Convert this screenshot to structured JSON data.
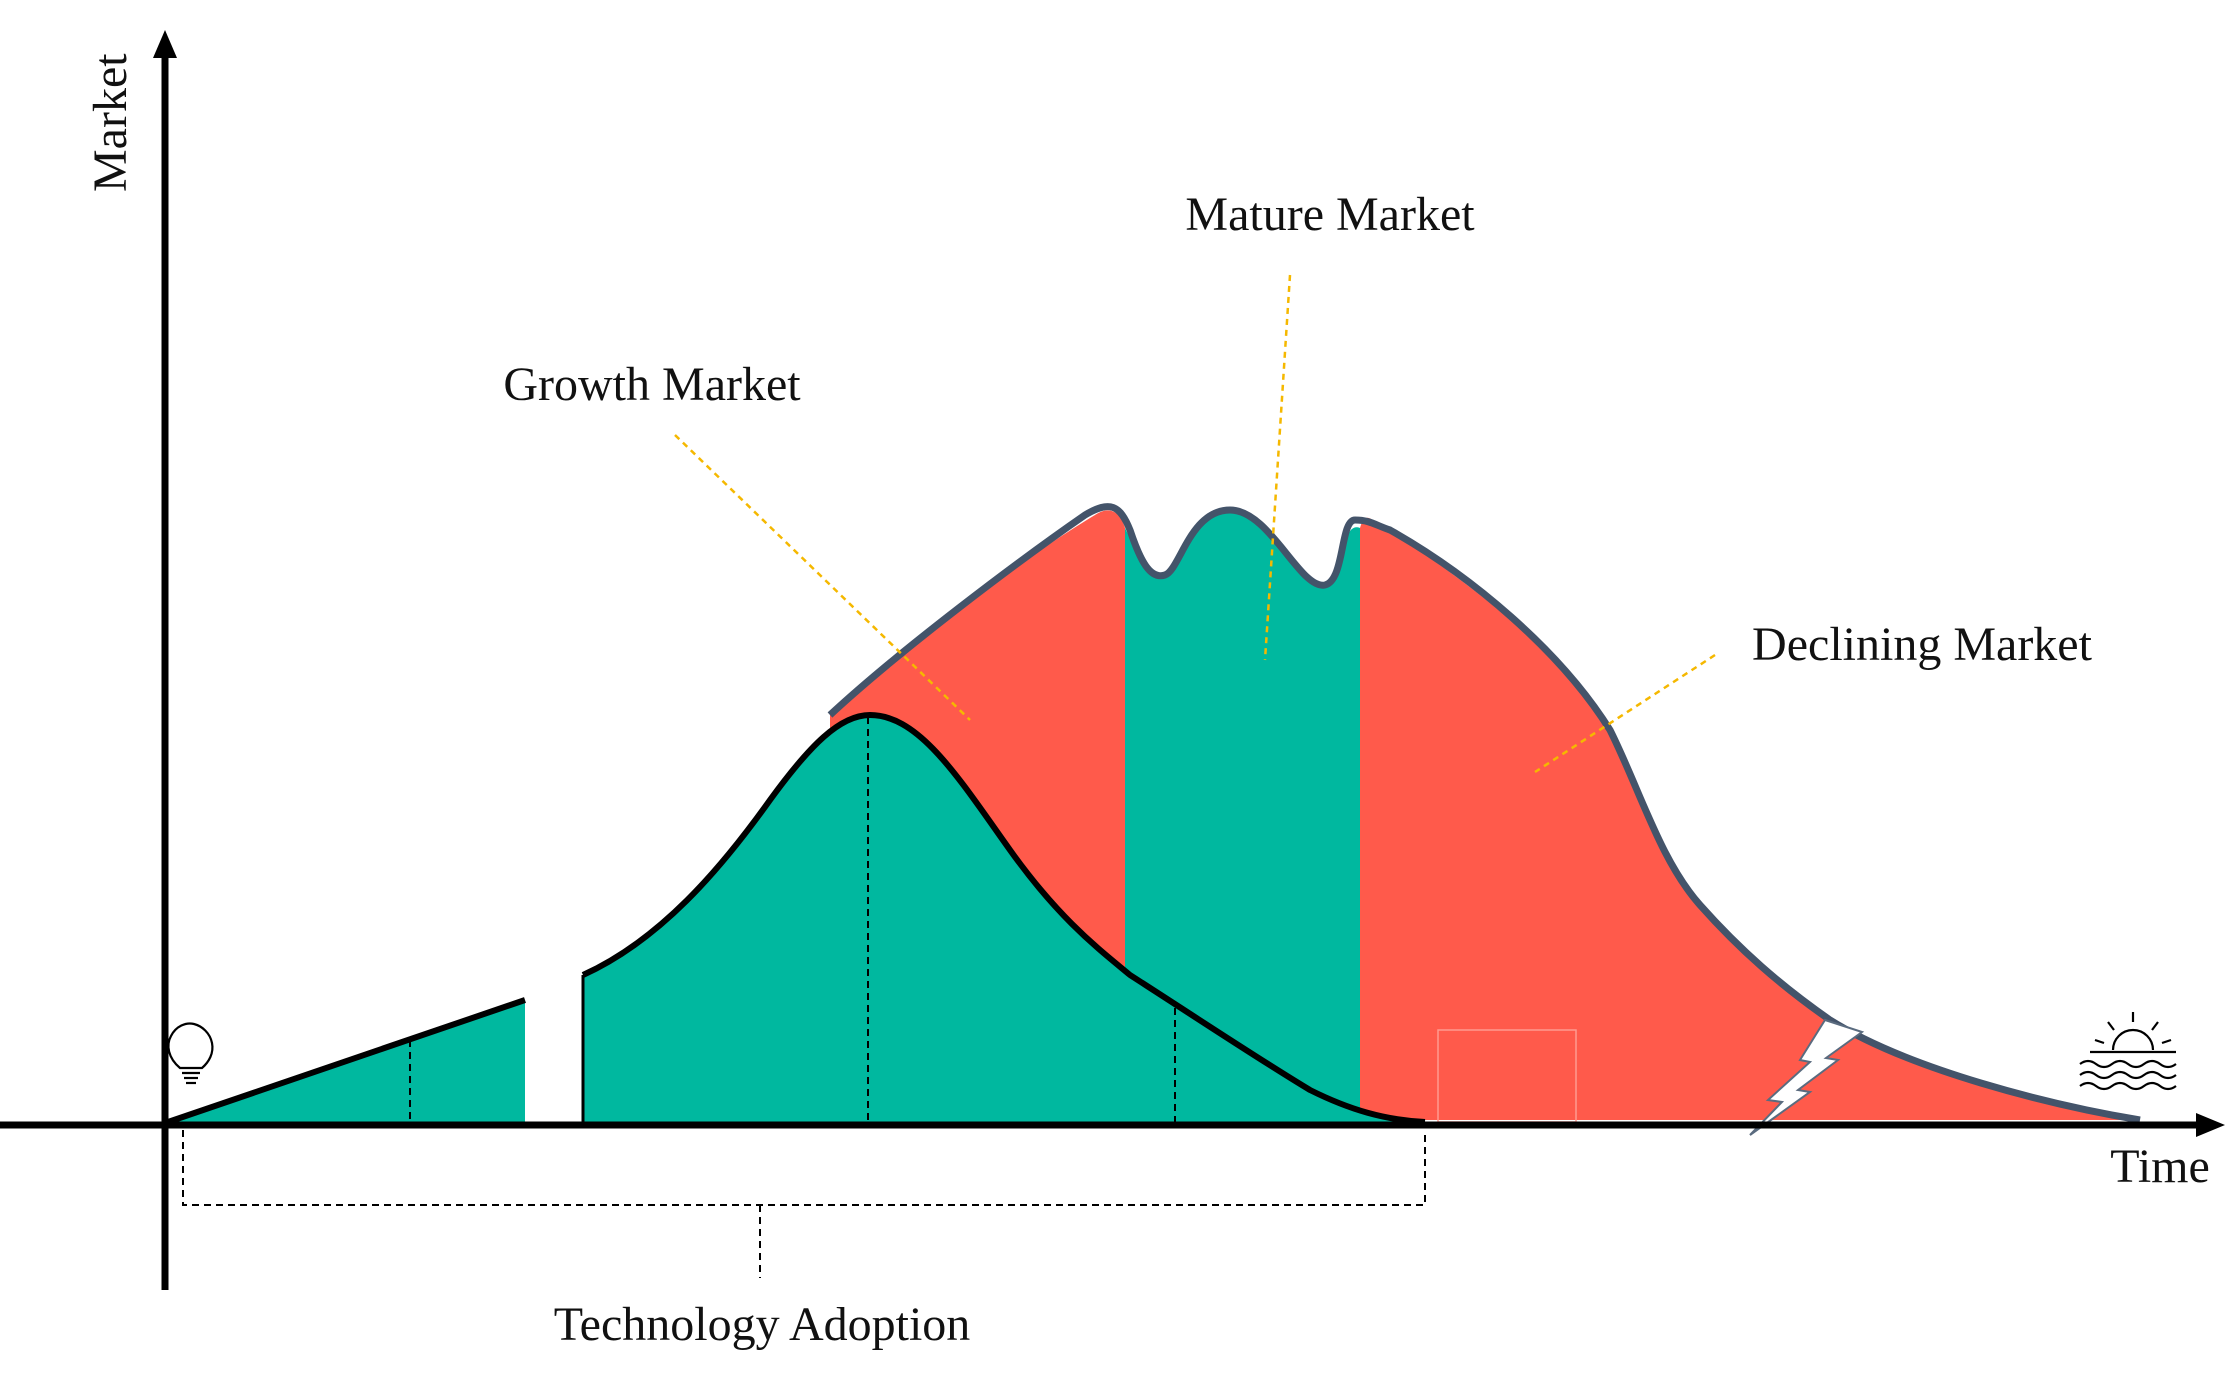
{
  "axes": {
    "y_label": "Market",
    "x_label": "Time"
  },
  "phases": {
    "growth": "Growth Market",
    "mature": "Mature Market",
    "declining": "Declining Market"
  },
  "bracket_label": "Technology Adoption",
  "icons": {
    "start": "lightbulb-icon",
    "end": "sunset-icon",
    "break": "lightning-bolt-icon"
  },
  "colors": {
    "green": "#00B89F",
    "red": "#FF5A4B",
    "outline": "#44546A",
    "leader": "#F5B800",
    "axis": "#000000"
  }
}
